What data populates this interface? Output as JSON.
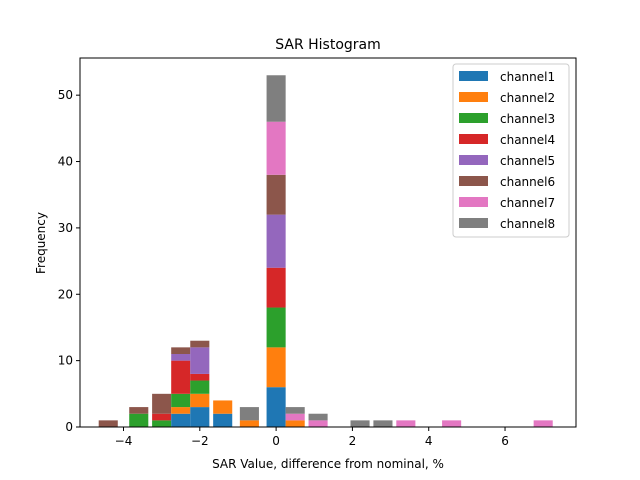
{
  "chart_data": {
    "type": "bar",
    "stacked": true,
    "title": "SAR Histogram",
    "xlabel": "SAR Value, difference from nominal, %",
    "ylabel": "Frequency",
    "xlim": [
      -5.14,
      7.86
    ],
    "ylim": [
      0,
      55.6
    ],
    "xticks": [
      -4,
      -2,
      0,
      2,
      4,
      6
    ],
    "xtick_labels": [
      "−4",
      "−2",
      "0",
      "2",
      "4",
      "6"
    ],
    "yticks": [
      0,
      10,
      20,
      30,
      40,
      50
    ],
    "bar_width": 0.5,
    "legend_position": "upper right",
    "bins": [
      -4.4,
      -3.6,
      -3.0,
      -2.5,
      -2.0,
      -1.4,
      -0.7,
      0.0,
      0.5,
      1.1,
      2.2,
      2.8,
      3.4,
      4.6,
      7.0
    ],
    "series": [
      {
        "name": "channel1",
        "color": "#1f77b4",
        "values": [
          0,
          0,
          0,
          2,
          3,
          2,
          0,
          6,
          0,
          0,
          0,
          0,
          0,
          0,
          0
        ]
      },
      {
        "name": "channel2",
        "color": "#ff7f0e",
        "values": [
          0,
          0,
          0,
          1,
          2,
          2,
          1,
          6,
          1,
          0,
          0,
          0,
          0,
          0,
          0
        ]
      },
      {
        "name": "channel3",
        "color": "#2ca02c",
        "values": [
          0,
          2,
          1,
          2,
          2,
          0,
          0,
          6,
          0,
          0,
          0,
          0,
          0,
          0,
          0
        ]
      },
      {
        "name": "channel4",
        "color": "#d62728",
        "values": [
          0,
          0,
          1,
          5,
          1,
          0,
          0,
          6,
          0,
          0,
          0,
          0,
          0,
          0,
          0
        ]
      },
      {
        "name": "channel5",
        "color": "#9467bd",
        "values": [
          0,
          0,
          0,
          1,
          4,
          0,
          0,
          8,
          0,
          0,
          0,
          0,
          0,
          0,
          0
        ]
      },
      {
        "name": "channel6",
        "color": "#8c564b",
        "values": [
          1,
          1,
          3,
          1,
          1,
          0,
          0,
          6,
          0,
          0,
          0,
          0,
          0,
          0,
          0
        ]
      },
      {
        "name": "channel7",
        "color": "#e377c2",
        "values": [
          0,
          0,
          0,
          0,
          0,
          0,
          0,
          8,
          1,
          1,
          0,
          0,
          1,
          1,
          1
        ]
      },
      {
        "name": "channel8",
        "color": "#7f7f7f",
        "values": [
          0,
          0,
          0,
          0,
          0,
          0,
          2,
          7,
          1,
          1,
          1,
          1,
          0,
          0,
          0
        ]
      }
    ]
  }
}
